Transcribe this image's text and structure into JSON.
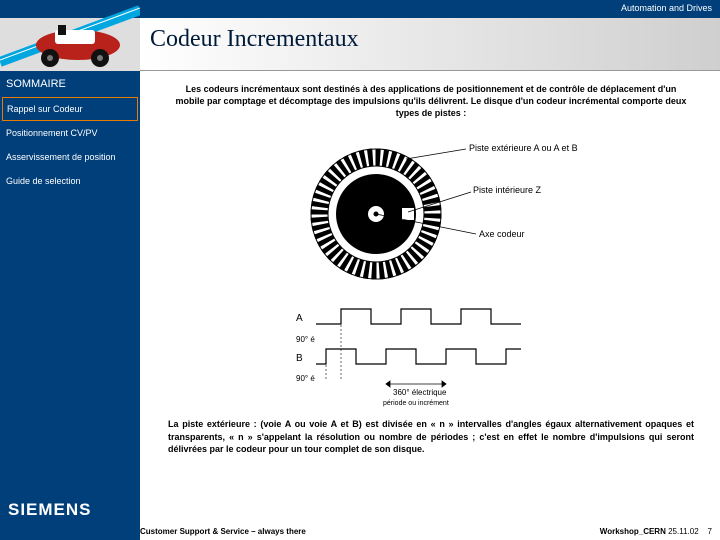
{
  "header": {
    "product_line": "Automation and Drives",
    "slide_title": "Codeur Incrementaux"
  },
  "sidebar": {
    "heading": "SOMMAIRE",
    "items": [
      {
        "label": "Rappel sur Codeur",
        "active": true
      },
      {
        "label": "Positionnement CV/PV",
        "active": false
      },
      {
        "label": "Asservissement de position",
        "active": false
      },
      {
        "label": "Guide de selection",
        "active": false
      }
    ],
    "brand": "SIEMENS"
  },
  "content": {
    "intro_text": "Les codeurs incrémentaux sont destinés à des applications de positionnement et de contrôle de déplacement d'un mobile par comptage et décomptage des impulsions qu'ils délivrent. Le disque d'un codeur incrémental comporte deux types de pistes :",
    "diagram_labels": {
      "outer_track": "Piste extérieure A ou A et B",
      "inner_track": "Piste intérieure Z",
      "axis": "Axe codeur",
      "signal_A": "A",
      "signal_B": "B",
      "phase_AB": "90° é",
      "phase_B": "90° é",
      "period": "360° électrique",
      "period_sub": "période ou incrément"
    },
    "outro_text": "La piste extérieure : (voie A ou voie A et B) est divisée en « n » intervalles d'angles égaux alternativement opaques et transparents, « n » s'appelant la résolution ou nombre de périodes ; c'est en effet le nombre d'impulsions qui seront délivrées par le codeur pour un tour complet de son disque."
  },
  "footer": {
    "tagline": "Customer Support & Service – always there",
    "workshop": "Workshop_CERN",
    "date": "25.11.02",
    "page": "7"
  },
  "style": {
    "brand_blue": "#003f7a",
    "accent_orange": "#e87b00",
    "title_font": "Georgia",
    "title_size_pt": 24,
    "body_size_pt": 9,
    "signal_linewidth": 1.2,
    "encoder_outer_teeth": 48
  }
}
